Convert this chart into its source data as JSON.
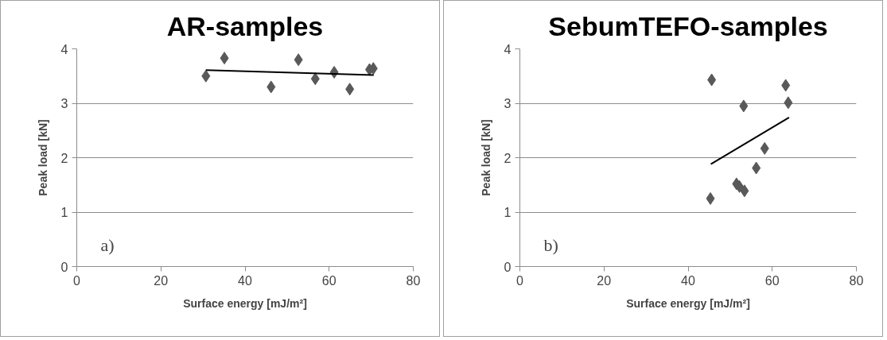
{
  "chart_data": [
    {
      "type": "scatter",
      "title": "AR-samples",
      "xlabel": "Surface energy [mJ/m²]",
      "ylabel": "Peak load [kN]",
      "annotations": [
        "a)"
      ],
      "xlim": [
        0,
        80
      ],
      "ylim": [
        0,
        4
      ],
      "xticks": [
        0,
        20,
        40,
        60,
        80
      ],
      "yticks": [
        0,
        1,
        2,
        3,
        4
      ],
      "grid": "y",
      "marker": "diamond",
      "series": [
        {
          "color": "#595959",
          "x": [
            30.7,
            35.1,
            46.2,
            52.7,
            56.7,
            61.2,
            64.9,
            69.6,
            70.5
          ],
          "values": [
            3.5,
            3.83,
            3.3,
            3.8,
            3.45,
            3.57,
            3.26,
            3.62,
            3.64
          ]
        },
        {
          "type": "line",
          "color": "#000000",
          "marker": "none",
          "x": [
            30.7,
            70.6
          ],
          "values": [
            3.61,
            3.52
          ]
        }
      ]
    },
    {
      "type": "scatter",
      "title": "SebumTEFO-samples",
      "xlabel": "Surface energy [mJ/m²]",
      "ylabel": "Peak load [kN]",
      "annotations": [
        "b)"
      ],
      "xlim": [
        0,
        80
      ],
      "ylim": [
        0,
        4
      ],
      "xticks": [
        0,
        20,
        40,
        60,
        80
      ],
      "yticks": [
        0,
        1,
        2,
        3,
        4
      ],
      "grid": "y",
      "marker": "diamond",
      "series": [
        {
          "color": "#595959",
          "x": [
            45.6,
            45.3,
            53.2,
            51.5,
            52.2,
            53.4,
            56.2,
            58.2,
            63.2,
            63.8
          ],
          "values": [
            3.43,
            1.25,
            2.95,
            1.52,
            1.47,
            1.39,
            1.81,
            2.17,
            3.33,
            3.01
          ]
        },
        {
          "type": "line",
          "color": "#000000",
          "marker": "none",
          "x": [
            45.4,
            64.0
          ],
          "values": [
            1.88,
            2.74
          ]
        }
      ]
    }
  ]
}
